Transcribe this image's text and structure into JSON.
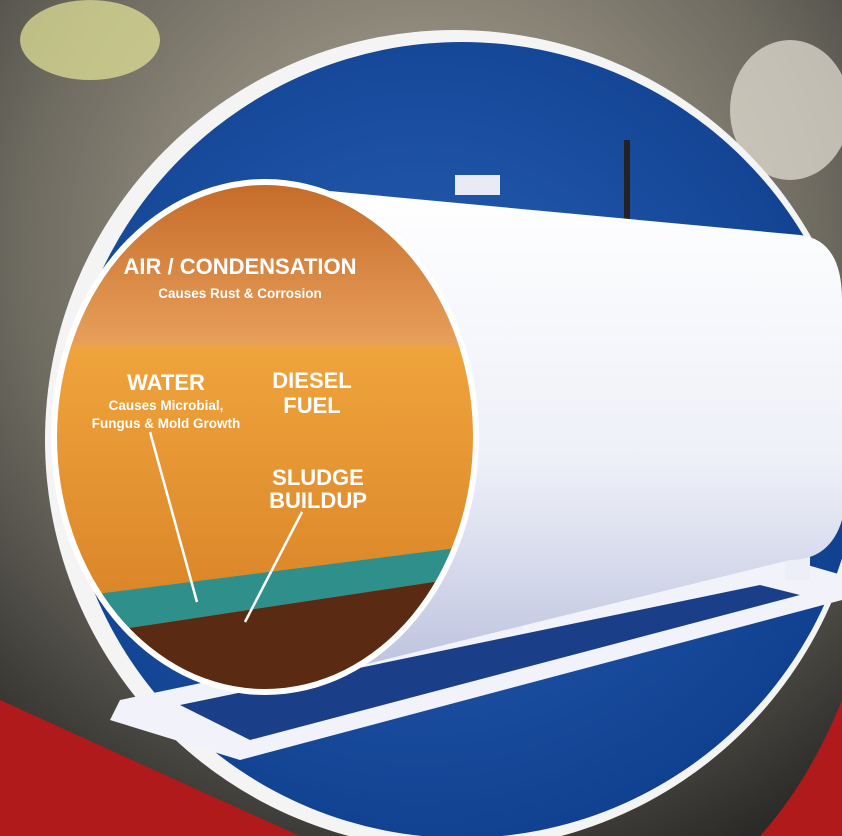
{
  "labels": {
    "air": {
      "title": "AIR / CONDENSATION",
      "note": "Causes Rust & Corrosion"
    },
    "water": {
      "title": "WATER",
      "note": [
        "Causes Microbial,",
        "Fungus & Mold Growth"
      ]
    },
    "diesel": [
      "DIESEL",
      "FUEL"
    ],
    "sludge": [
      "SLUDGE",
      "BUILDUP"
    ]
  }
}
